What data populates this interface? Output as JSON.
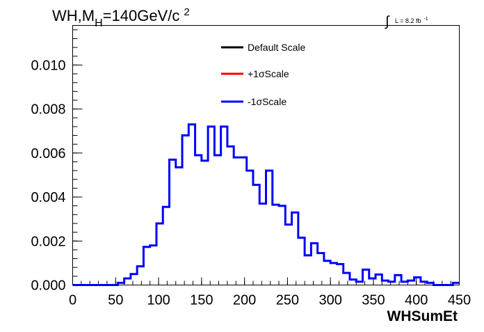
{
  "chart_data": {
    "type": "histogram-step",
    "title": {
      "prefix": "WH,M",
      "subscript": "H",
      "main": "=140GeV/c",
      "superscript": "2"
    },
    "luminosity": {
      "symbol": "∫",
      "text": "L = 8.2 fb",
      "superscript": "-1"
    },
    "xlabel": "WHSumEt",
    "ylabel": "",
    "xlim": [
      0,
      450
    ],
    "ylim": [
      0,
      0.0118
    ],
    "xticks": [
      0,
      50,
      100,
      150,
      200,
      250,
      300,
      350,
      400,
      450
    ],
    "xtick_labels": [
      "0",
      "50",
      "100",
      "150",
      "200",
      "250",
      "300",
      "350",
      "400",
      "450"
    ],
    "yticks": [
      0.0,
      0.002,
      0.004,
      0.006,
      0.008,
      0.01
    ],
    "ytick_labels": [
      "0.000",
      "0.002",
      "0.004",
      "0.006",
      "0.008",
      "0.010"
    ],
    "bin_width": 7.5,
    "grid": false,
    "legend": {
      "position": "top-center",
      "entries": [
        {
          "label": "Default Scale",
          "color": "#000000"
        },
        {
          "label": "+1σScale",
          "color": "#ff0000"
        },
        {
          "label": "-1σScale",
          "color": "#0000ff"
        }
      ]
    },
    "series": [
      {
        "name": "-1σScale",
        "color": "#0000ff",
        "x": [
          0,
          7.5,
          15,
          22.5,
          30,
          37.5,
          45,
          52.5,
          60,
          67.5,
          75,
          82.5,
          90,
          97.5,
          105,
          112.5,
          120,
          127.5,
          135,
          142.5,
          150,
          157.5,
          165,
          172.5,
          180,
          187.5,
          195,
          202.5,
          210,
          217.5,
          225,
          232.5,
          240,
          247.5,
          255,
          262.5,
          270,
          277.5,
          285,
          292.5,
          300,
          307.5,
          315,
          322.5,
          330,
          337.5,
          345,
          352.5,
          360,
          367.5,
          375,
          382.5,
          390,
          397.5,
          405,
          412.5,
          420,
          427.5,
          435,
          442.5
        ],
        "values": [
          0.0,
          0.0,
          0.0,
          0.0,
          0.0,
          0.0,
          0.0,
          0.0001,
          0.0003,
          0.0005,
          0.00085,
          0.00173,
          0.0018,
          0.0028,
          0.00355,
          0.0057,
          0.00535,
          0.0068,
          0.0073,
          0.0059,
          0.00565,
          0.0072,
          0.0059,
          0.0072,
          0.0063,
          0.0058,
          0.0058,
          0.0052,
          0.00455,
          0.0037,
          0.0052,
          0.00365,
          0.0036,
          0.00275,
          0.0033,
          0.00215,
          0.00135,
          0.0019,
          0.00145,
          0.0011,
          0.001,
          0.00095,
          0.00055,
          0.00025,
          0.00015,
          0.0007,
          0.0003,
          0.00048,
          0.0002,
          0.00015,
          0.00045,
          0.00015,
          0.0002,
          0.00035,
          0.00015,
          0.0001,
          0.0,
          0.0,
          0.0,
          0.0001
        ]
      }
    ]
  }
}
